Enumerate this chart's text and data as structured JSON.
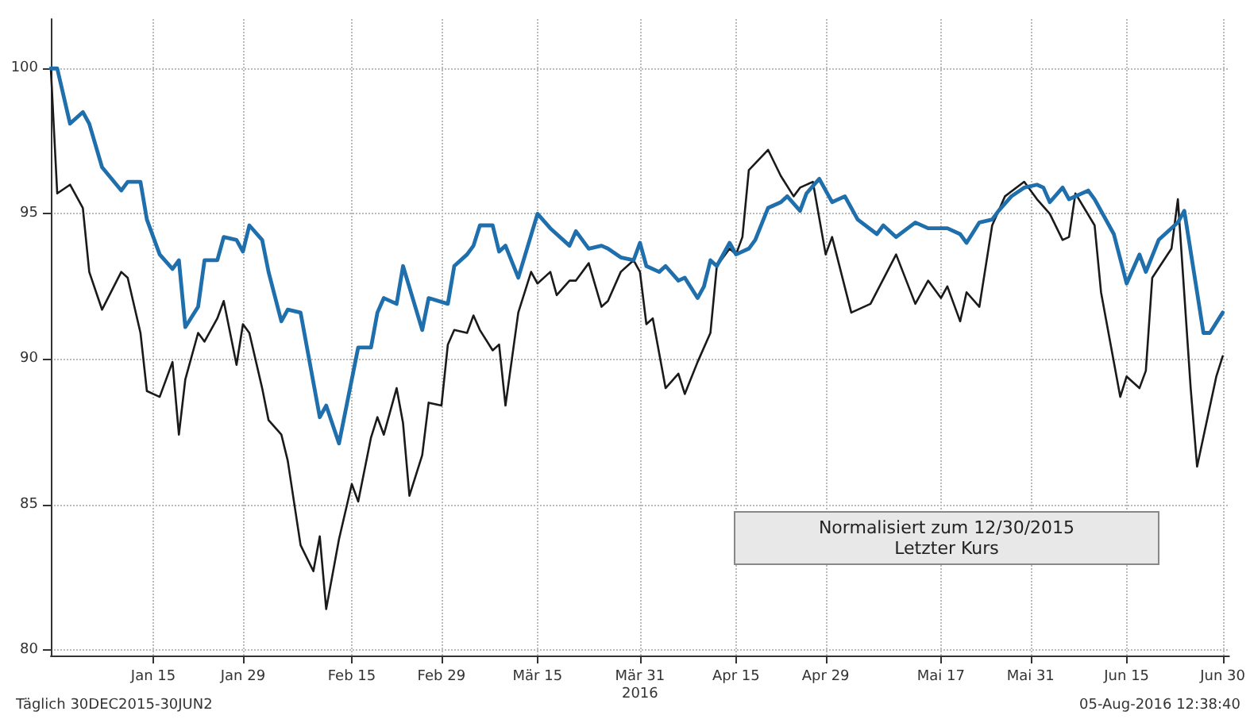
{
  "chart_data": {
    "type": "line",
    "legend_title": "Normalisiert zum 12/30/2015",
    "annotations": [
      "Letzter Kurs",
      "Täglich 30DEC2015-30JUN2",
      "05-Aug-2016 12:38:40"
    ],
    "xlim": [
      "2015-12-30",
      "2016-07-01"
    ],
    "xticks": [
      {
        "value": "2016-01-15",
        "label": "Jan 15"
      },
      {
        "value": "2016-01-29",
        "label": "Jan 29"
      },
      {
        "value": "2016-02-15",
        "label": "Feb 15"
      },
      {
        "value": "2016-02-29",
        "label": "Feb 29"
      },
      {
        "value": "2016-03-15",
        "label": "Mär 15"
      },
      {
        "value": "2016-03-31",
        "label": "Mär 31\n2016"
      },
      {
        "value": "2016-04-15",
        "label": "Apr 15"
      },
      {
        "value": "2016-04-29",
        "label": "Apr 29"
      },
      {
        "value": "2016-05-17",
        "label": "Mai 17"
      },
      {
        "value": "2016-05-31",
        "label": "Mai 31"
      },
      {
        "value": "2016-06-15",
        "label": "Jun 15"
      },
      {
        "value": "2016-06-30",
        "label": "Jun 30"
      }
    ],
    "ylim": [
      79.8,
      101.7
    ],
    "yticks": [
      80,
      85,
      90,
      95,
      100
    ],
    "grid": true,
    "marker": "none",
    "line_style": "solid",
    "series": [
      {
        "color": "#1f6fad",
        "x": [
          "2015-12-30",
          "2015-12-31",
          "2016-01-02",
          "2016-01-04",
          "2016-01-05",
          "2016-01-07",
          "2016-01-10",
          "2016-01-11",
          "2016-01-13",
          "2016-01-14",
          "2016-01-16",
          "2016-01-18",
          "2016-01-19",
          "2016-01-20",
          "2016-01-22",
          "2016-01-23",
          "2016-01-25",
          "2016-01-26",
          "2016-01-28",
          "2016-01-29",
          "2016-01-30",
          "2016-02-01",
          "2016-02-02",
          "2016-02-04",
          "2016-02-05",
          "2016-02-07",
          "2016-02-10",
          "2016-02-11",
          "2016-02-13",
          "2016-02-16",
          "2016-02-18",
          "2016-02-19",
          "2016-02-20",
          "2016-02-22",
          "2016-02-23",
          "2016-02-26",
          "2016-02-27",
          "2016-03-01",
          "2016-03-02",
          "2016-03-04",
          "2016-03-05",
          "2016-03-06",
          "2016-03-08",
          "2016-03-09",
          "2016-03-10",
          "2016-03-12",
          "2016-03-15",
          "2016-03-17",
          "2016-03-20",
          "2016-03-21",
          "2016-03-23",
          "2016-03-25",
          "2016-03-26",
          "2016-03-28",
          "2016-03-30",
          "2016-03-31",
          "2016-04-01",
          "2016-04-03",
          "2016-04-04",
          "2016-04-06",
          "2016-04-07",
          "2016-04-09",
          "2016-04-10",
          "2016-04-11",
          "2016-04-12",
          "2016-04-14",
          "2016-04-15",
          "2016-04-17",
          "2016-04-18",
          "2016-04-20",
          "2016-04-22",
          "2016-04-23",
          "2016-04-25",
          "2016-04-26",
          "2016-04-28",
          "2016-04-30",
          "2016-05-02",
          "2016-05-04",
          "2016-05-07",
          "2016-05-08",
          "2016-05-10",
          "2016-05-13",
          "2016-05-15",
          "2016-05-18",
          "2016-05-20",
          "2016-05-21",
          "2016-05-23",
          "2016-05-25",
          "2016-05-26",
          "2016-05-28",
          "2016-05-30",
          "2016-06-01",
          "2016-06-02",
          "2016-06-03",
          "2016-06-05",
          "2016-06-06",
          "2016-06-09",
          "2016-06-10",
          "2016-06-13",
          "2016-06-15",
          "2016-06-17",
          "2016-06-18",
          "2016-06-20",
          "2016-06-23",
          "2016-06-24",
          "2016-06-27",
          "2016-06-28",
          "2016-06-30"
        ],
        "values": [
          100,
          100,
          98.1,
          98.5,
          98.1,
          96.6,
          95.8,
          96.1,
          96.1,
          94.8,
          93.6,
          93.1,
          93.4,
          91.1,
          91.8,
          93.4,
          93.4,
          94.2,
          94.1,
          93.7,
          94.6,
          94.1,
          93.0,
          91.3,
          91.7,
          91.6,
          88.0,
          88.4,
          87.1,
          90.4,
          90.4,
          91.6,
          92.1,
          91.9,
          93.2,
          91.0,
          92.1,
          91.9,
          93.2,
          93.6,
          93.9,
          94.6,
          94.6,
          93.7,
          93.9,
          92.8,
          95.0,
          94.5,
          93.9,
          94.4,
          93.8,
          93.9,
          93.8,
          93.5,
          93.4,
          94.0,
          93.2,
          93.0,
          93.2,
          92.7,
          92.8,
          92.1,
          92.5,
          93.4,
          93.2,
          94.0,
          93.6,
          93.8,
          94.1,
          95.2,
          95.4,
          95.6,
          95.1,
          95.7,
          96.2,
          95.4,
          95.6,
          94.8,
          94.3,
          94.6,
          94.2,
          94.7,
          94.5,
          94.5,
          94.3,
          94.0,
          94.7,
          94.8,
          95.1,
          95.6,
          95.9,
          96.0,
          95.9,
          95.4,
          95.9,
          95.5,
          95.8,
          95.5,
          94.3,
          92.6,
          93.6,
          93.0,
          94.1,
          94.7,
          95.1,
          90.9,
          90.9,
          91.6
        ]
      },
      {
        "color": "#1a1a1a",
        "x": [
          "2015-12-30",
          "2015-12-31",
          "2016-01-02",
          "2016-01-04",
          "2016-01-05",
          "2016-01-07",
          "2016-01-10",
          "2016-01-11",
          "2016-01-13",
          "2016-01-14",
          "2016-01-16",
          "2016-01-18",
          "2016-01-19",
          "2016-01-20",
          "2016-01-22",
          "2016-01-23",
          "2016-01-25",
          "2016-01-26",
          "2016-01-28",
          "2016-01-29",
          "2016-01-30",
          "2016-02-01",
          "2016-02-02",
          "2016-02-04",
          "2016-02-05",
          "2016-02-07",
          "2016-02-09",
          "2016-02-10",
          "2016-02-11",
          "2016-02-13",
          "2016-02-15",
          "2016-02-16",
          "2016-02-18",
          "2016-02-19",
          "2016-02-20",
          "2016-02-22",
          "2016-02-23",
          "2016-02-24",
          "2016-02-26",
          "2016-02-27",
          "2016-02-29",
          "2016-03-01",
          "2016-03-02",
          "2016-03-04",
          "2016-03-05",
          "2016-03-06",
          "2016-03-08",
          "2016-03-09",
          "2016-03-10",
          "2016-03-12",
          "2016-03-14",
          "2016-03-15",
          "2016-03-17",
          "2016-03-18",
          "2016-03-20",
          "2016-03-21",
          "2016-03-23",
          "2016-03-25",
          "2016-03-26",
          "2016-03-28",
          "2016-03-30",
          "2016-03-31",
          "2016-04-01",
          "2016-04-02",
          "2016-04-04",
          "2016-04-06",
          "2016-04-07",
          "2016-04-09",
          "2016-04-11",
          "2016-04-12",
          "2016-04-14",
          "2016-04-15",
          "2016-04-16",
          "2016-04-17",
          "2016-04-20",
          "2016-04-22",
          "2016-04-24",
          "2016-04-25",
          "2016-04-27",
          "2016-04-29",
          "2016-04-30",
          "2016-05-03",
          "2016-05-06",
          "2016-05-10",
          "2016-05-13",
          "2016-05-15",
          "2016-05-17",
          "2016-05-18",
          "2016-05-20",
          "2016-05-21",
          "2016-05-23",
          "2016-05-25",
          "2016-05-27",
          "2016-05-30",
          "2016-06-01",
          "2016-06-03",
          "2016-06-05",
          "2016-06-06",
          "2016-06-07",
          "2016-06-10",
          "2016-06-11",
          "2016-06-14",
          "2016-06-15",
          "2016-06-17",
          "2016-06-18",
          "2016-06-19",
          "2016-06-22",
          "2016-06-23",
          "2016-06-25",
          "2016-06-26",
          "2016-06-29",
          "2016-06-30"
        ],
        "values": [
          100,
          95.7,
          96.0,
          95.2,
          93.0,
          91.7,
          93.0,
          92.8,
          90.9,
          88.9,
          88.7,
          89.9,
          87.4,
          89.3,
          90.9,
          90.6,
          91.4,
          92.0,
          89.8,
          91.2,
          90.9,
          89.0,
          87.9,
          87.4,
          86.5,
          83.6,
          82.7,
          83.9,
          81.4,
          83.8,
          85.7,
          85.1,
          87.3,
          88.0,
          87.4,
          89.0,
          87.8,
          85.3,
          86.7,
          88.5,
          88.4,
          90.5,
          91.0,
          90.9,
          91.5,
          91.0,
          90.3,
          90.5,
          88.4,
          91.6,
          93.0,
          92.6,
          93.0,
          92.2,
          92.7,
          92.7,
          93.3,
          91.8,
          92.0,
          93.0,
          93.4,
          93.0,
          91.2,
          91.4,
          89.0,
          89.5,
          88.8,
          89.9,
          90.9,
          93.2,
          93.8,
          93.6,
          94.2,
          96.5,
          97.2,
          96.3,
          95.6,
          95.9,
          96.1,
          93.6,
          94.2,
          91.6,
          91.9,
          93.6,
          91.9,
          92.7,
          92.1,
          92.5,
          91.3,
          92.3,
          91.8,
          94.6,
          95.6,
          96.1,
          95.5,
          95.0,
          94.1,
          94.2,
          95.7,
          94.6,
          92.3,
          88.7,
          89.4,
          89.0,
          89.6,
          92.8,
          93.8,
          95.5,
          89.0,
          86.3,
          89.4,
          90.1
        ]
      }
    ]
  }
}
